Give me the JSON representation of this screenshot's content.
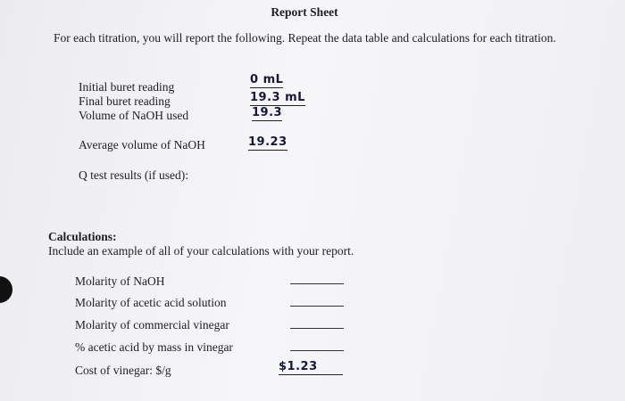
{
  "header": {
    "title": "Report Sheet"
  },
  "intro": "For each titration, you will report the following. Repeat the data table and calculations for each titration.",
  "titration": {
    "rows": [
      {
        "label": "Initial buret reading",
        "entry": "0 mL"
      },
      {
        "label": "Final buret reading",
        "entry": "19.3 mL"
      },
      {
        "label": "Volume of NaOH used",
        "entry": "19.3"
      }
    ]
  },
  "average": {
    "label": "Average volume of NaOH",
    "entry": "19.23"
  },
  "q_test": {
    "label": "Q test results (if used):"
  },
  "calculations": {
    "heading": "Calculations:",
    "instruction": "Include an example of all of your calculations with your report.",
    "rows": [
      {
        "label": "Molarity of NaOH"
      },
      {
        "label": "Molarity of acetic acid solution"
      },
      {
        "label": "Molarity of commercial vinegar"
      },
      {
        "label": "% acetic acid by mass in vinegar"
      },
      {
        "label": "Cost of vinegar: $/g",
        "entry": "$1.23"
      }
    ]
  }
}
